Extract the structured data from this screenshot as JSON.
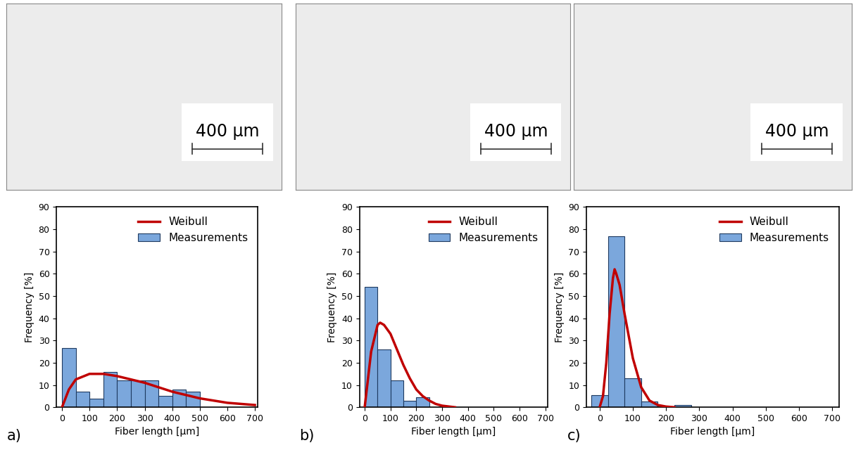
{
  "chart_data": [
    {
      "type": "histogram",
      "annotations": [
        "a)"
      ],
      "scale_bar": {
        "value": 400,
        "label": "400 µm"
      },
      "x_label": "Fiber length [µm]",
      "y_label": "Frequency [%]",
      "bins": [
        0,
        50,
        100,
        150,
        200,
        250,
        300,
        350,
        400,
        450,
        500
      ],
      "series": [
        {
          "name": "Weibull",
          "type": "line",
          "color": "#c00000",
          "x": [
            0,
            25,
            50,
            100,
            150,
            200,
            250,
            300,
            350,
            400,
            450,
            500,
            550,
            600,
            650,
            700
          ],
          "values": [
            0,
            8,
            12.5,
            15,
            15,
            14,
            12.5,
            11,
            9,
            7,
            5.5,
            4,
            3,
            2,
            1.5,
            1
          ]
        },
        {
          "name": "Measurements",
          "type": "bar",
          "color": "#7ba7dc",
          "values": [
            26.5,
            7,
            4,
            16,
            12,
            12,
            12,
            5,
            8,
            7
          ]
        }
      ],
      "xlim": [
        -20,
        710
      ],
      "ylim": [
        0,
        90
      ],
      "xticks": [
        0,
        100,
        200,
        300,
        400,
        500,
        600,
        700
      ],
      "yticks": [
        0,
        10,
        20,
        30,
        40,
        50,
        60,
        70,
        80,
        90
      ],
      "legend": "upper right"
    },
    {
      "type": "histogram",
      "annotations": [
        "b)"
      ],
      "scale_bar": {
        "value": 400,
        "label": "400 µm"
      },
      "x_label": "Fiber length [µm]",
      "y_label": "Frequency [%]",
      "bins": [
        0,
        50,
        100,
        150,
        200,
        250
      ],
      "series": [
        {
          "name": "Weibull",
          "type": "line",
          "color": "#c00000",
          "x": [
            0,
            10,
            25,
            50,
            60,
            75,
            100,
            125,
            150,
            175,
            200,
            225,
            250,
            275,
            300,
            350
          ],
          "values": [
            0,
            10,
            25,
            37,
            38,
            37,
            33,
            26,
            19,
            13,
            8,
            5,
            3,
            1.5,
            0.7,
            0
          ]
        },
        {
          "name": "Measurements",
          "type": "bar",
          "color": "#7ba7dc",
          "values": [
            54,
            26,
            12,
            3,
            4.5
          ]
        }
      ],
      "xlim": [
        -20,
        710
      ],
      "ylim": [
        0,
        90
      ],
      "xticks": [
        0,
        100,
        200,
        300,
        400,
        500,
        600,
        700
      ],
      "yticks": [
        0,
        10,
        20,
        30,
        40,
        50,
        60,
        70,
        80,
        90
      ],
      "legend": "upper right"
    },
    {
      "type": "histogram",
      "annotations": [
        "c)"
      ],
      "scale_bar": {
        "value": 400,
        "label": "400 µm"
      },
      "x_label": "Fiber length [µm]",
      "y_label": "Frequency [%]",
      "bins": [
        -25,
        25,
        75,
        125,
        175,
        225,
        275
      ],
      "series": [
        {
          "name": "Weibull",
          "type": "line",
          "color": "#c00000",
          "x": [
            0,
            10,
            20,
            30,
            40,
            45,
            50,
            60,
            75,
            100,
            125,
            150,
            175,
            200,
            225
          ],
          "values": [
            0,
            5,
            20,
            42,
            58,
            62,
            60,
            55,
            42,
            22,
            9,
            3,
            1,
            0.3,
            0
          ]
        },
        {
          "name": "Measurements",
          "type": "bar",
          "color": "#7ba7dc",
          "values": [
            5.5,
            77,
            13,
            2.5,
            0,
            1
          ]
        }
      ],
      "xlim": [
        -40,
        720
      ],
      "ylim": [
        0,
        90
      ],
      "xticks": [
        0,
        100,
        200,
        300,
        400,
        500,
        600,
        700
      ],
      "yticks": [
        0,
        10,
        20,
        30,
        40,
        50,
        60,
        70,
        80,
        90
      ],
      "legend": "upper right"
    }
  ]
}
